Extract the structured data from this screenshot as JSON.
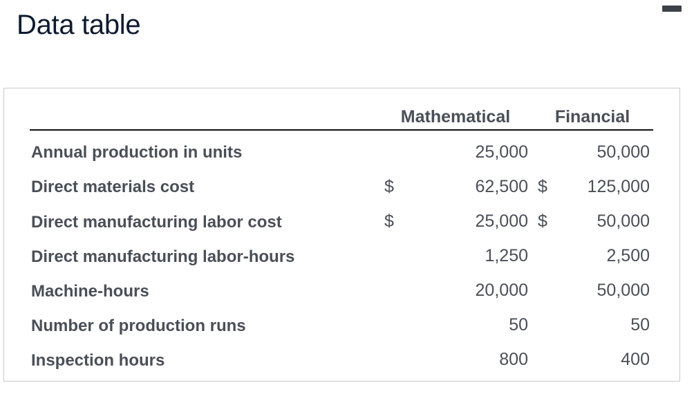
{
  "title": "Data table",
  "columns": {
    "mathematical": "Mathematical",
    "financial": "Financial"
  },
  "rows": [
    {
      "label": "Annual production in units",
      "math_prefix": "",
      "math": "25,000",
      "fin_prefix": "",
      "fin": "50,000"
    },
    {
      "label": "Direct materials cost",
      "math_prefix": "$",
      "math": "62,500",
      "fin_prefix": "$",
      "fin": "125,000"
    },
    {
      "label": "Direct manufacturing labor cost",
      "math_prefix": "$",
      "math": "25,000",
      "fin_prefix": "$",
      "fin": "50,000"
    },
    {
      "label": "Direct manufacturing labor-hours",
      "math_prefix": "",
      "math": "1,250",
      "fin_prefix": "",
      "fin": "2,500"
    },
    {
      "label": "Machine-hours",
      "math_prefix": "",
      "math": "20,000",
      "fin_prefix": "",
      "fin": "50,000"
    },
    {
      "label": "Number of production runs",
      "math_prefix": "",
      "math": "50",
      "fin_prefix": "",
      "fin": "50"
    },
    {
      "label": "Inspection hours",
      "math_prefix": "",
      "math": "800",
      "fin_prefix": "",
      "fin": "400"
    }
  ],
  "window": {
    "minimize_icon": "minimize-icon"
  }
}
